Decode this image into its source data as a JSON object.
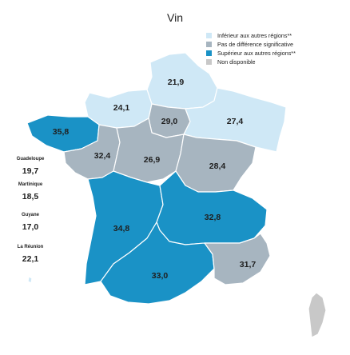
{
  "title": "Vin",
  "colors": {
    "inferieur": "#cfe8f6",
    "pas_difference": "#a7b5c0",
    "superieur": "#1a92c6",
    "non_disponible": "#c8c8c8",
    "border": "#ffffff"
  },
  "legend": [
    {
      "label": "Inférieur aux autres régions**",
      "color": "#cfe8f6"
    },
    {
      "label": "Pas de différence significative",
      "color": "#a7b5c0"
    },
    {
      "label": "Supérieur aux autres régions**",
      "color": "#1a92c6"
    },
    {
      "label": "Non disponible",
      "color": "#c8c8c8"
    }
  ],
  "regions": {
    "hauts_de_france": {
      "value": "21,9",
      "category": "inferieur"
    },
    "normandie": {
      "value": "24,1",
      "category": "inferieur"
    },
    "ile_de_france": {
      "value": "29,0",
      "category": "pas_difference"
    },
    "grand_est": {
      "value": "27,4",
      "category": "inferieur"
    },
    "bretagne": {
      "value": "35,8",
      "category": "superieur"
    },
    "pays_de_la_loire": {
      "value": "32,4",
      "category": "pas_difference"
    },
    "centre_val_de_loire": {
      "value": "26,9",
      "category": "pas_difference"
    },
    "bourgogne_franche_comte": {
      "value": "28,4",
      "category": "pas_difference"
    },
    "nouvelle_aquitaine": {
      "value": "34,8",
      "category": "superieur"
    },
    "auvergne_rhone_alpes": {
      "value": "32,8",
      "category": "superieur"
    },
    "occitanie": {
      "value": "33,0",
      "category": "superieur"
    },
    "paca": {
      "value": "31,7",
      "category": "pas_difference"
    },
    "corse": {
      "value": "",
      "category": "non_disponible"
    }
  },
  "dom": [
    {
      "name": "Guadeloupe",
      "value": "19,7"
    },
    {
      "name": "Martinique",
      "value": "18,5"
    },
    {
      "name": "Guyane",
      "value": "17,0"
    },
    {
      "name": "La Réunion",
      "value": "22,1"
    }
  ]
}
